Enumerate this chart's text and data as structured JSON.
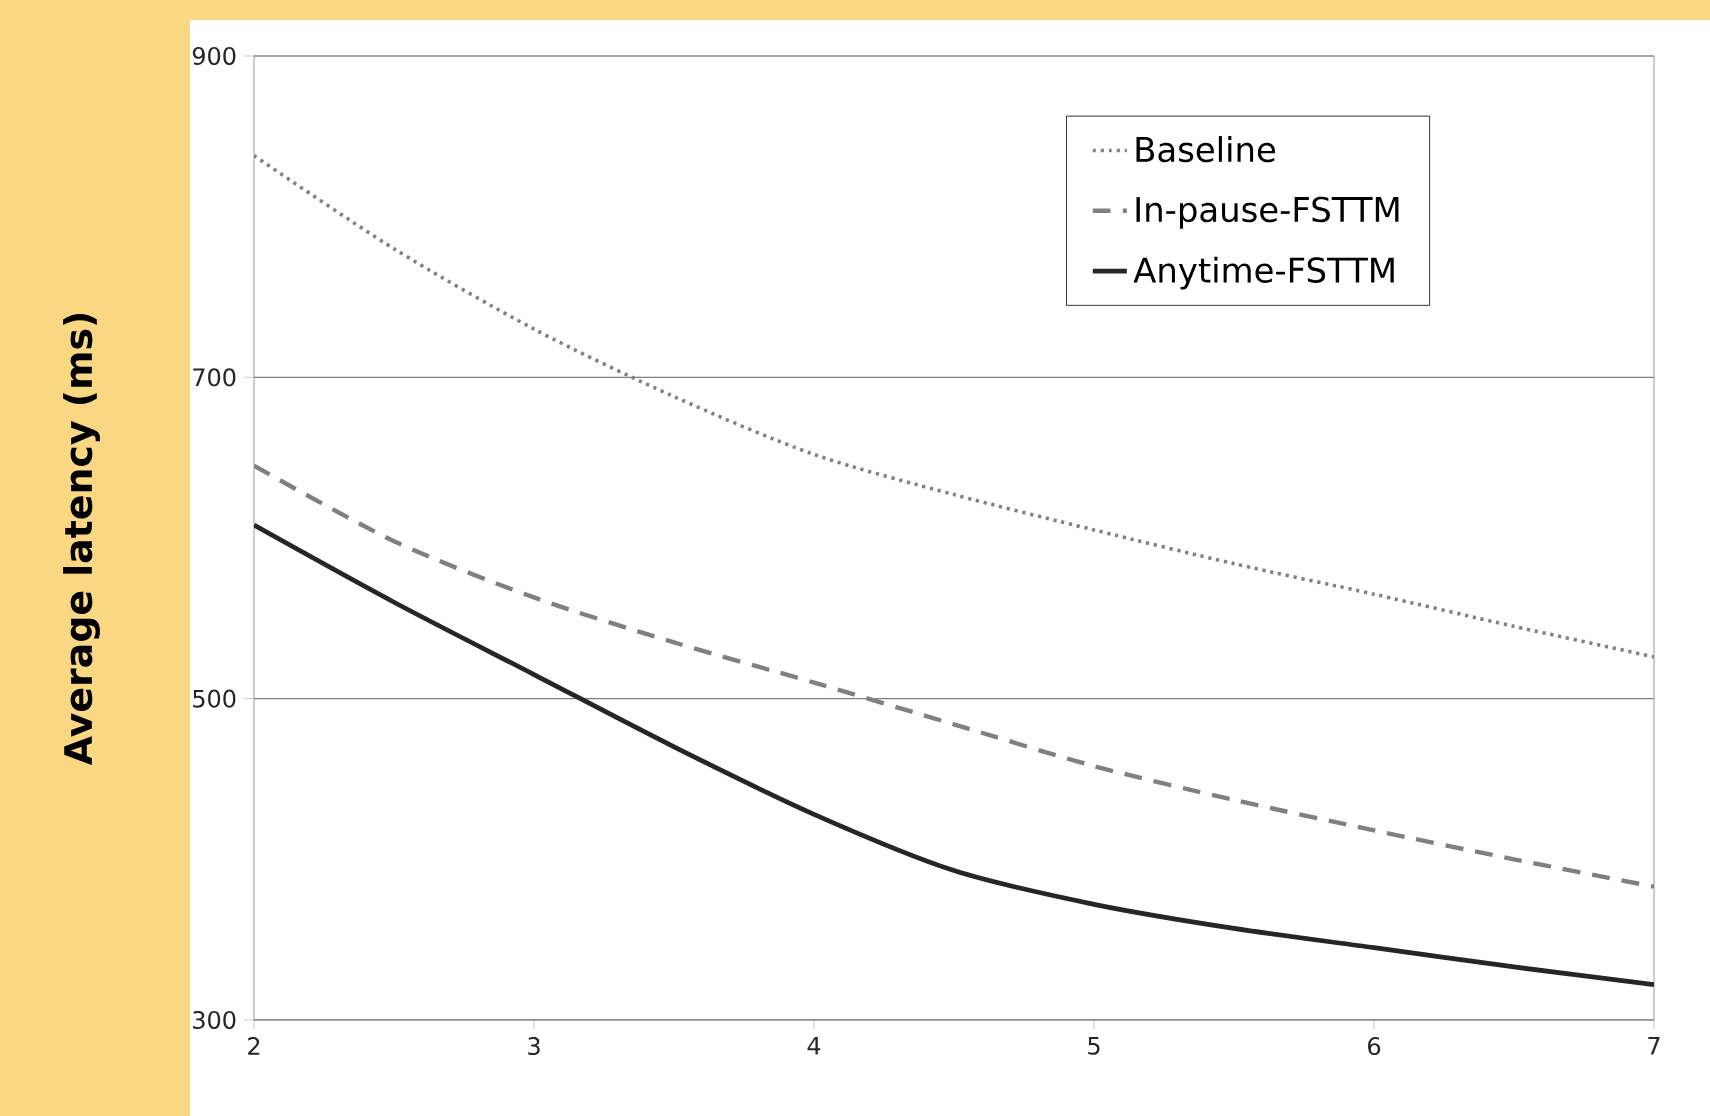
{
  "chart_data": {
    "type": "line",
    "ylabel": "Average latency (ms)",
    "x": [
      2,
      2.5,
      3,
      3.5,
      4,
      4.5,
      5,
      5.5,
      6,
      6.5,
      7
    ],
    "series": [
      {
        "name": "Baseline",
        "color": "#808080",
        "line_style": "dotted",
        "values": [
          838,
          780,
          730,
          688,
          652,
          627,
          605,
          584,
          565,
          545,
          526
        ]
      },
      {
        "name": "In-pause-FSTTM",
        "color": "#808080",
        "line_style": "dashed",
        "values": [
          645,
          598,
          563,
          535,
          510,
          484,
          458,
          437,
          418,
          400,
          383
        ]
      },
      {
        "name": "Anytime-FSTTM",
        "color": "#262626",
        "line_style": "solid",
        "values": [
          608,
          560,
          515,
          470,
          428,
          393,
          372,
          357,
          345,
          333,
          322
        ]
      }
    ],
    "xlim": [
      2,
      7
    ],
    "ylim": [
      300,
      900
    ],
    "xticks": [
      2,
      3,
      4,
      5,
      6,
      7
    ],
    "yticks": [
      300,
      500,
      700,
      900
    ],
    "grid": "y",
    "legend": "top right",
    "marker": "none"
  }
}
